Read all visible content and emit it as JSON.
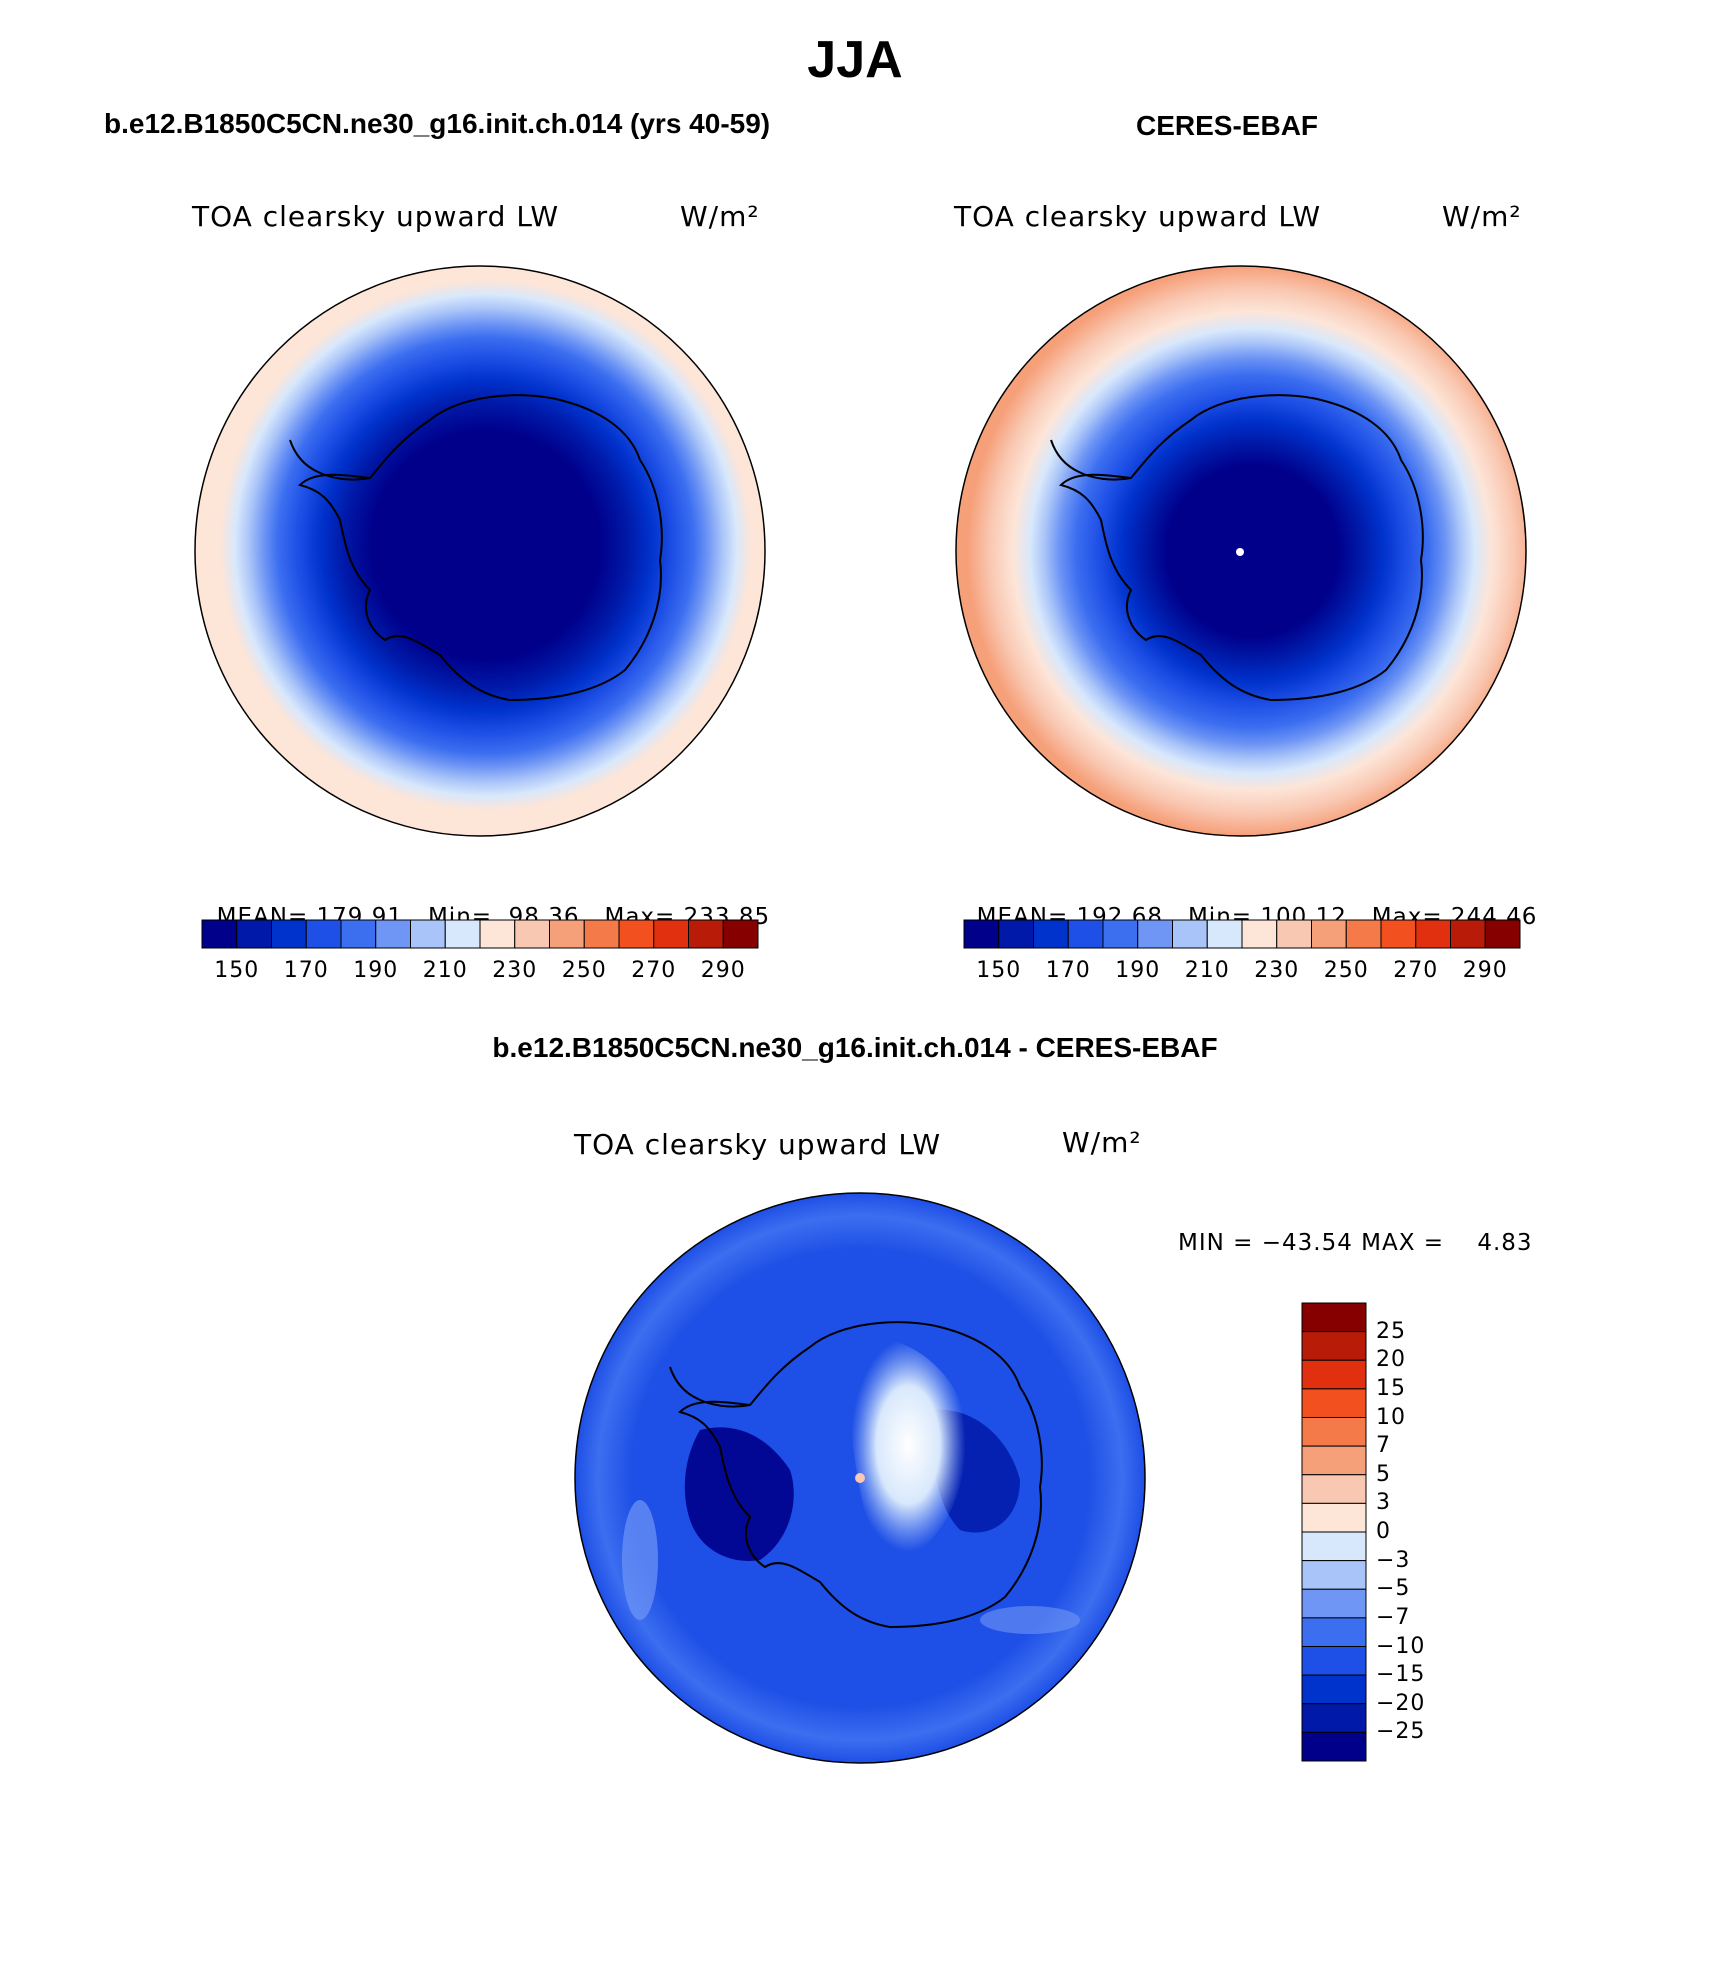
{
  "title": "JJA",
  "panels": {
    "model": {
      "title": "b.e12.B1850C5CN.ne30_g16.init.ch.014 (yrs 40-59)",
      "variable": "TOA clearsky upward LW",
      "units": "W/m²",
      "stats": {
        "mean": "179.91",
        "min": "98.36",
        "max": "233.85"
      },
      "stats_labels": {
        "mean": "MEAN=",
        "min": "Min=",
        "max": "Max="
      }
    },
    "obs": {
      "title": "CERES-EBAF",
      "variable": "TOA clearsky upward LW",
      "units": "W/m²",
      "stats": {
        "mean": "192.68",
        "min": "100.12",
        "max": "244.46"
      },
      "stats_labels": {
        "mean": "MEAN=",
        "min": "Min=",
        "max": "Max="
      }
    },
    "diff": {
      "title": "b.e12.B1850C5CN.ne30_g16.init.ch.014 - CERES-EBAF",
      "variable": "TOA clearsky upward LW",
      "units": "W/m²",
      "minmax_text": "MIN = −43.54 MAX =    4.83"
    }
  },
  "colorbar_main": {
    "ticks": [
      "150",
      "170",
      "190",
      "210",
      "230",
      "250",
      "270",
      "290"
    ],
    "colors": [
      "#00008b",
      "#0019a8",
      "#0032cc",
      "#1e4fe6",
      "#3c6ef0",
      "#6f96f5",
      "#a9c4f8",
      "#d8e8fc",
      "#fde5d8",
      "#f9c8b2",
      "#f6a07a",
      "#f57a4a",
      "#f3501f",
      "#e03010",
      "#b81c08",
      "#870000"
    ]
  },
  "colorbar_diff": {
    "ticks": [
      "25",
      "20",
      "15",
      "10",
      "7",
      "5",
      "3",
      "0",
      "−3",
      "−5",
      "−7",
      "−10",
      "−15",
      "−20",
      "−25"
    ],
    "colors": [
      "#870000",
      "#b81c08",
      "#e03010",
      "#f3501f",
      "#f57a4a",
      "#f6a07a",
      "#f9c8b2",
      "#fde5d8",
      "#d8e8fc",
      "#a9c4f8",
      "#6f96f5",
      "#3c6ef0",
      "#1e4fe6",
      "#0032cc",
      "#0019a8",
      "#00008b"
    ]
  }
}
